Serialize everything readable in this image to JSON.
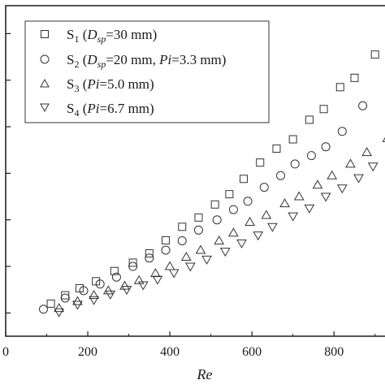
{
  "chart_data": {
    "type": "scatter",
    "xlabel": "Re",
    "xlim": [
      0,
      950
    ],
    "ylim": [
      0,
      7.1
    ],
    "x_ticks": [
      0,
      200,
      400,
      600,
      800
    ],
    "x_tick_labels": [
      "0",
      "200",
      "400",
      "600",
      "800"
    ],
    "y_ticks": [
      0.5,
      1.5,
      2.5,
      3.5,
      4.5,
      5.5,
      6.5
    ],
    "legend_position": "top-left",
    "series": [
      {
        "name": "S1 (Dsp=30 mm)",
        "marker": "square",
        "points": [
          [
            110,
            0.7
          ],
          [
            145,
            0.88
          ],
          [
            180,
            1.03
          ],
          [
            220,
            1.18
          ],
          [
            265,
            1.4
          ],
          [
            310,
            1.58
          ],
          [
            350,
            1.78
          ],
          [
            390,
            2.06
          ],
          [
            430,
            2.35
          ],
          [
            470,
            2.55
          ],
          [
            510,
            2.83
          ],
          [
            545,
            3.05
          ],
          [
            580,
            3.38
          ],
          [
            620,
            3.73
          ],
          [
            660,
            4.03
          ],
          [
            700,
            4.23
          ],
          [
            740,
            4.65
          ],
          [
            775,
            4.88
          ],
          [
            815,
            5.35
          ],
          [
            850,
            5.55
          ],
          [
            900,
            6.05
          ]
        ]
      },
      {
        "name": "S2 (Dsp=20 mm, Pi=3.3 mm)",
        "marker": "circle",
        "points": [
          [
            92,
            0.58
          ],
          [
            145,
            0.82
          ],
          [
            190,
            0.98
          ],
          [
            230,
            1.12
          ],
          [
            270,
            1.27
          ],
          [
            310,
            1.5
          ],
          [
            350,
            1.68
          ],
          [
            390,
            1.85
          ],
          [
            430,
            2.05
          ],
          [
            470,
            2.28
          ],
          [
            515,
            2.5
          ],
          [
            555,
            2.72
          ],
          [
            590,
            2.9
          ],
          [
            630,
            3.2
          ],
          [
            670,
            3.45
          ],
          [
            705,
            3.7
          ],
          [
            745,
            3.88
          ],
          [
            780,
            4.07
          ],
          [
            820,
            4.4
          ],
          [
            870,
            4.95
          ]
        ]
      },
      {
        "name": "S3 (Pi=5.0 mm)",
        "marker": "triangle-up",
        "points": [
          [
            130,
            0.6
          ],
          [
            175,
            0.75
          ],
          [
            215,
            0.88
          ],
          [
            250,
            0.98
          ],
          [
            290,
            1.08
          ],
          [
            325,
            1.2
          ],
          [
            365,
            1.35
          ],
          [
            400,
            1.5
          ],
          [
            440,
            1.7
          ],
          [
            475,
            1.85
          ],
          [
            520,
            2.05
          ],
          [
            555,
            2.22
          ],
          [
            595,
            2.45
          ],
          [
            635,
            2.6
          ],
          [
            680,
            2.85
          ],
          [
            715,
            3.0
          ],
          [
            760,
            3.25
          ],
          [
            795,
            3.45
          ],
          [
            840,
            3.7
          ],
          [
            880,
            3.95
          ],
          [
            930,
            4.25
          ]
        ]
      },
      {
        "name": "S4 (Pi=6.7 mm)",
        "marker": "triangle-down",
        "points": [
          [
            130,
            0.52
          ],
          [
            175,
            0.68
          ],
          [
            215,
            0.78
          ],
          [
            255,
            0.9
          ],
          [
            295,
            1.0
          ],
          [
            335,
            1.1
          ],
          [
            370,
            1.22
          ],
          [
            410,
            1.36
          ],
          [
            450,
            1.5
          ],
          [
            490,
            1.65
          ],
          [
            535,
            1.82
          ],
          [
            575,
            2.0
          ],
          [
            615,
            2.17
          ],
          [
            650,
            2.35
          ],
          [
            700,
            2.58
          ],
          [
            740,
            2.75
          ],
          [
            780,
            3.0
          ],
          [
            820,
            3.18
          ],
          [
            860,
            3.4
          ],
          [
            895,
            3.65
          ]
        ]
      }
    ]
  },
  "legend": {
    "s1": {
      "main": "S",
      "sub": "1",
      "paren_open": " (",
      "var": "D",
      "var_sub": "sp",
      "rest": "=30 mm)"
    },
    "s2": {
      "main": "S",
      "sub": "2",
      "paren_open": " (",
      "var": "D",
      "var_sub": "sp",
      "rest": "=20 mm, ",
      "var2": "Pi",
      "rest2": "=3.3 mm)"
    },
    "s3": {
      "main": "S",
      "sub": "3",
      "paren_open": " (",
      "var": "Pi",
      "rest": "=5.0 mm)"
    },
    "s4": {
      "main": "S",
      "sub": "4",
      "paren_open": " (",
      "var": "Pi",
      "rest": "=6.7 mm)"
    }
  },
  "colors": {
    "marker_stroke": "#333333",
    "axis": "#1a1a1a",
    "legend_border": "#333333"
  }
}
